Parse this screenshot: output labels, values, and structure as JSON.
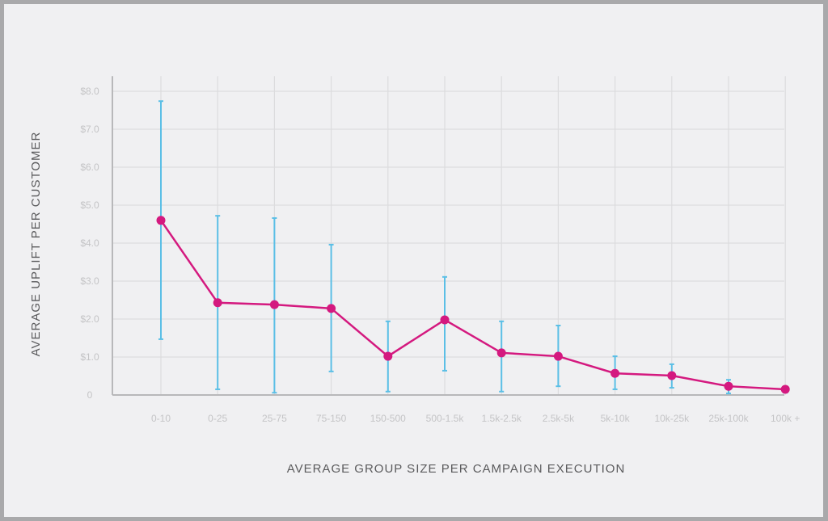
{
  "chart_data": {
    "type": "line",
    "title": "",
    "xlabel": "AVERAGE GROUP SIZE PER CAMPAIGN EXECUTION",
    "ylabel": "AVERAGE UPLIFT PER CUSTOMER",
    "ylim": [
      0,
      8
    ],
    "yticks": [
      0,
      1,
      2,
      3,
      4,
      5,
      6,
      7,
      8
    ],
    "ytick_labels": [
      "0",
      "$1.0",
      "$2.0",
      "$3.0",
      "$4.0",
      "$5.0",
      "$6.0",
      "$7.0",
      "$8.0"
    ],
    "categories": [
      "0-10",
      "0-25",
      "25-75",
      "75-150",
      "150-500",
      "500-1.5k",
      "1.5k-2.5k",
      "2.5k-5k",
      "5k-10k",
      "10k-25k",
      "25k-100k",
      "100k +"
    ],
    "grid": true,
    "series": [
      {
        "values": [
          4.6,
          2.43,
          2.38,
          2.28,
          1.02,
          1.98,
          1.11,
          1.02,
          0.57,
          0.51,
          0.23,
          0.15
        ],
        "error_upper": [
          7.74,
          4.72,
          4.66,
          3.96,
          1.94,
          3.11,
          1.94,
          1.83,
          1.02,
          0.81,
          0.4,
          0.21
        ],
        "error_lower": [
          1.47,
          0.15,
          0.06,
          0.62,
          0.09,
          0.64,
          0.09,
          0.23,
          0.15,
          0.19,
          0.04,
          0.06
        ],
        "color": "#d4197f",
        "error_color": "#5bbfe6"
      }
    ]
  }
}
